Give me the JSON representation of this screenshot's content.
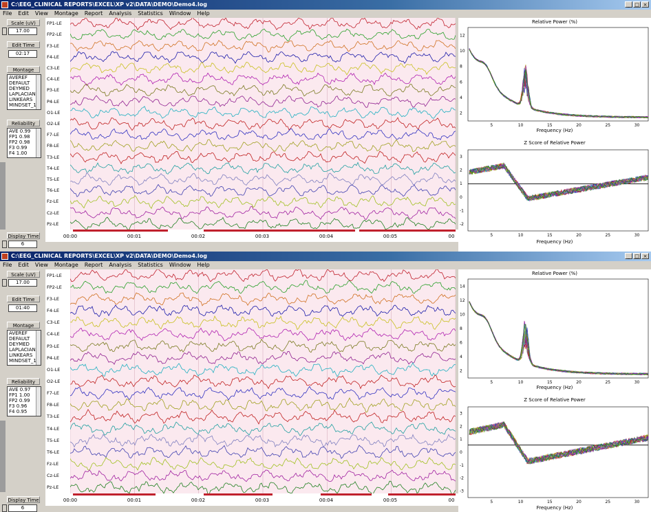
{
  "windows": [
    {
      "title": "C:\\EEG_CLINICAL REPORTS\\EXCEL\\XP v2\\DATA\\DEMO\\Demo4.log",
      "menu": [
        "File",
        "Edit",
        "View",
        "Montage",
        "Report",
        "Analysis",
        "Statistics",
        "Window",
        "Help"
      ],
      "scale_label": "Scale (uV)",
      "scale_value": "17.00",
      "edit_time_label": "Edit Time",
      "edit_time_value": "02:17",
      "montage_label": "Montage",
      "montage_options": [
        "AVEREF",
        "DEFAULT",
        "DEYMED",
        "LAPLACIAN",
        "LINKEARS",
        "MINDSET_1"
      ],
      "reliability_label": "Reliability",
      "reliability_items": [
        "AVE  0.99",
        "FP1  0.98",
        "FP2  0.98",
        "F3  0.99",
        "F4  1.00"
      ],
      "display_time_label": "Display Time",
      "display_time_value": "6",
      "channels": [
        "FP1-LE",
        "FP2-LE",
        "F3-LE",
        "F4-LE",
        "C3-LE",
        "C4-LE",
        "P3-LE",
        "P4-LE",
        "O1-LE",
        "O2-LE",
        "F7-LE",
        "F8-LE",
        "T3-LE",
        "T4-LE",
        "T5-LE",
        "T6-LE",
        "Fz-LE",
        "Cz-LE",
        "Pz-LE"
      ],
      "time_ticks": [
        "00:00",
        "00:01",
        "00:02",
        "00:03",
        "00:04",
        "00:05",
        "00"
      ],
      "plot_top": {
        "title": "Relative Power (%)",
        "xlabel": "Frequency (Hz)",
        "xticks": [
          "5",
          "10",
          "15",
          "20",
          "25",
          "30"
        ],
        "yticks": [
          "12",
          "10",
          "8",
          "6",
          "4",
          "2"
        ]
      },
      "plot_bottom": {
        "title": "Z Score of Relative Power",
        "xlabel": "Frequency (Hz)",
        "xticks": [
          "5",
          "10",
          "15",
          "20",
          "25",
          "30"
        ],
        "yticks": [
          "3",
          "2",
          "1",
          "0",
          "-1",
          "-2"
        ]
      }
    },
    {
      "title": "C:\\EEG_CLINICAL REPORTS\\EXCEL\\XP v2\\DATA\\DEMO\\Demo4.log",
      "menu": [
        "File",
        "Edit",
        "View",
        "Montage",
        "Report",
        "Analysis",
        "Statistics",
        "Window",
        "Help"
      ],
      "scale_label": "Scale (uV)",
      "scale_value": "17.00",
      "edit_time_label": "Edit Time",
      "edit_time_value": "01:40",
      "montage_label": "Montage",
      "montage_options": [
        "AVEREF",
        "DEFAULT",
        "DEYMED",
        "LAPLACIAN",
        "LINKEARS",
        "MINDSET_1"
      ],
      "reliability_label": "Reliability",
      "reliability_items": [
        "AVE  0.97",
        "FP1  1.00",
        "FP2  0.99",
        "F3  0.96",
        "F4  0.95"
      ],
      "display_time_label": "Display Time",
      "display_time_value": "6",
      "channels": [
        "FP1-LE",
        "FP2-LE",
        "F3-LE",
        "F4-LE",
        "C3-LE",
        "C4-LE",
        "P3-LE",
        "P4-LE",
        "O1-LE",
        "O2-LE",
        "F7-LE",
        "F8-LE",
        "T3-LE",
        "T4-LE",
        "T5-LE",
        "T6-LE",
        "Fz-LE",
        "Cz-LE",
        "Pz-LE"
      ],
      "time_ticks": [
        "00:00",
        "00:01",
        "00:02",
        "00:03",
        "00:04",
        "00:05",
        "00"
      ],
      "plot_top": {
        "title": "Relative Power (%)",
        "xlabel": "Frequency (Hz)",
        "xticks": [
          "5",
          "10",
          "15",
          "20",
          "25",
          "30"
        ],
        "yticks": [
          "14",
          "12",
          "10",
          "8",
          "6",
          "4",
          "2"
        ]
      },
      "plot_bottom": {
        "title": "Z Score of Relative Power",
        "xlabel": "Frequency (Hz)",
        "xticks": [
          "5",
          "10",
          "15",
          "20",
          "25",
          "30"
        ],
        "yticks": [
          "3",
          "2",
          "1",
          "0",
          "-1",
          "-2",
          "-3"
        ]
      }
    }
  ],
  "trace_colors": [
    "#c0202c",
    "#2aa02a",
    "#d07020",
    "#1c1caa",
    "#c8c020",
    "#b020b0",
    "#7a7a20",
    "#902090",
    "#20b0c0",
    "#c02020",
    "#3030c0",
    "#a0a020",
    "#c02020",
    "#20a0a0",
    "#8080c0",
    "#4040b0",
    "#a0c020",
    "#a020a0",
    "#208020"
  ],
  "colors": {
    "title_bar": "#0a246a",
    "trace_background": "#fbe9ef",
    "marker_red": "#c0202c"
  }
}
